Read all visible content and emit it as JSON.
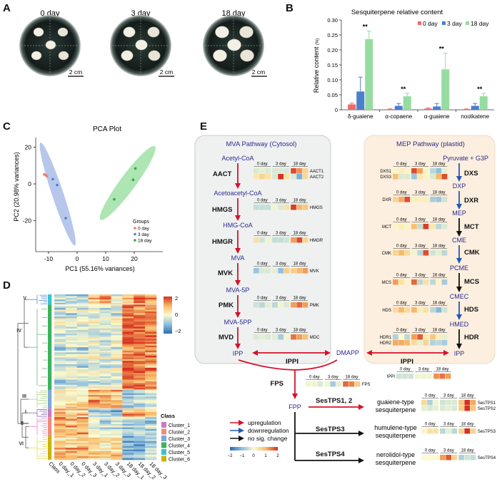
{
  "panels": {
    "a": "A",
    "b": "B",
    "c": "C",
    "d": "D",
    "e": "E"
  },
  "panel_a": {
    "photos": [
      {
        "title": "0 day",
        "scale": "2 cm"
      },
      {
        "title": "3 day",
        "scale": "2 cm"
      },
      {
        "title": "18 day",
        "scale": "2 cm"
      }
    ]
  },
  "colors": {
    "day0": "#ef6a67",
    "day3": "#4a7fcb",
    "day18": "#96dca0",
    "up": "#d7102a",
    "down": "#2159b8",
    "none": "#111111"
  },
  "chart_data": [
    {
      "id": "sesquiterpene",
      "type": "bar",
      "title": "Sesquiterpene relative content",
      "xlabel": "",
      "ylabel": "Relative content",
      "ylabel_unit": "(%)",
      "ylim": [
        0,
        0.3
      ],
      "yticks": [
        "0",
        "0.05",
        "0.10",
        "0.15",
        "0.20",
        "0.25",
        "0.30"
      ],
      "categories": [
        "δ-guaiene",
        "α-copaene",
        "α-guaiene",
        "nootkatene"
      ],
      "legend_position": "top-right",
      "series": [
        {
          "name": "0 day",
          "values": [
            0.018,
            0.002,
            0.004,
            0.002
          ],
          "errors": [
            0.004,
            0.001,
            0.002,
            0.001
          ]
        },
        {
          "name": "3 day",
          "values": [
            0.061,
            0.013,
            0.011,
            0.013
          ],
          "errors": [
            0.048,
            0.008,
            0.01,
            0.008
          ]
        },
        {
          "name": "18 day",
          "values": [
            0.236,
            0.045,
            0.135,
            0.045
          ],
          "errors": [
            0.027,
            0.01,
            0.054,
            0.01
          ]
        }
      ],
      "significance": [
        "**",
        "**",
        "**",
        "**"
      ]
    },
    {
      "id": "pca",
      "type": "scatter",
      "title": "PCA Plot",
      "xlabel": "PC1 (55.16% variances)",
      "ylabel": "PC2 (20.98% variances)",
      "xlim": [
        -15,
        28
      ],
      "ylim": [
        -36,
        25
      ],
      "xticks": [
        "-10",
        "0",
        "10",
        "20"
      ],
      "yticks": [
        "20",
        "0",
        "-20"
      ],
      "xtick_values": [
        -10,
        0,
        10,
        20
      ],
      "ytick_values": [
        20,
        0,
        -20
      ],
      "legend_title": "Groups",
      "legend_position": "bottom-right",
      "series": [
        {
          "name": "0 day",
          "points": [
            [
              -11.5,
              5.2
            ],
            [
              -11,
              4.8
            ],
            [
              -10.6,
              4.2
            ]
          ],
          "ellipse_ends": null
        },
        {
          "name": "3 day",
          "points": [
            [
              -8.5,
              2.6
            ],
            [
              -7,
              -0.6
            ],
            [
              -4,
              -18.6
            ]
          ],
          "ellipse_ends": [
            [
              -12.8,
              22.5
            ],
            [
              -0.8,
              -33.5
            ]
          ]
        },
        {
          "name": "18 day",
          "points": [
            [
              13,
              -8.4
            ],
            [
              19.6,
              2.2
            ],
            [
              20.4,
              8.4
            ]
          ],
          "ellipse_ends": [
            [
              8.2,
              -19.5
            ],
            [
              27.2,
              20.5
            ]
          ]
        }
      ]
    },
    {
      "id": "heatmap",
      "type": "heatmap",
      "columns": [
        "Class",
        "0 day_1",
        "0 day_2",
        "0 day_3",
        "3 day_1",
        "3 day_2",
        "3 day_3",
        "18 day_1",
        "18 day_2",
        "18 day_3"
      ],
      "scale_ticks": [
        "2",
        "0",
        "−2"
      ],
      "legend_title": "Class",
      "clusters": [
        {
          "roman": "V",
          "class": "Cluster_5",
          "rows": 6,
          "profile": [
            -0.8,
            -0.6,
            -0.6,
            0.6,
            1.2,
            -0.2,
            0.8,
            1.2,
            1.0
          ],
          "color": "#37c3cf",
          "tree": "#3b7dd8"
        },
        {
          "roman": "IV",
          "class": "Cluster_4",
          "rows": 50,
          "profile": [
            -0.5,
            -0.4,
            -0.4,
            -0.3,
            -0.4,
            -0.3,
            1.5,
            1.4,
            1.2
          ],
          "color": "#3cb35b",
          "tree": "#5aa96a"
        },
        {
          "roman": "III",
          "class": "Cluster_3",
          "rows": 11,
          "profile": [
            0.3,
            0.3,
            0.3,
            1.0,
            0.9,
            1.0,
            -0.9,
            -0.8,
            -0.5
          ],
          "color": "#7fa8dc",
          "tree": "#9bd06a"
        },
        {
          "roman": "I",
          "class": "Cluster_1",
          "rows": 5,
          "profile": [
            0.8,
            0.6,
            0.6,
            -0.8,
            -1.0,
            -1.1,
            1.0,
            0.9,
            0.4
          ],
          "color": "#c77dbd",
          "tree": "#7a4fb0"
        },
        {
          "roman": "II",
          "class": "Cluster_2",
          "rows": 11,
          "profile": [
            1.3,
            1.1,
            1.2,
            0.0,
            -0.3,
            -0.2,
            -0.6,
            -0.6,
            -0.6
          ],
          "color": "#f08a7e",
          "tree": "#e377b8"
        },
        {
          "roman": "VI",
          "class": "Cluster_6",
          "rows": 14,
          "profile": [
            0.7,
            0.9,
            0.9,
            0.6,
            0.4,
            0.6,
            -1.1,
            -1.0,
            -0.7
          ],
          "color": "#c9b40f",
          "tree": "#d8d82a"
        }
      ],
      "class_legend": [
        "Cluster_1",
        "Cluster_2",
        "Cluster_3",
        "Cluster_4",
        "Cluster_5",
        "Cluster_6"
      ]
    }
  ],
  "pathway": {
    "mva_title": "MVA Pathway (Cytosol)",
    "mep_title": "MEP Pathway (plastid)",
    "mva": {
      "acetyl": "Acetyl-CoA",
      "aact": "AACT",
      "acetoacetyl": "Acetoacetyl-CoA",
      "hmgs": "HMGS",
      "hmgcoa": "HMG-CoA",
      "hmgr": "HMGR",
      "mva": "MVA",
      "mvk": "MVK",
      "mva5p": "MVA-5P",
      "pmk": "PMK",
      "mva5pp": "MVA-5PP",
      "mvd": "MVD",
      "ipp": "IPP"
    },
    "mep": {
      "pyr": "Pyruvate + G3P",
      "dxs": "DXS",
      "dxp": "DXP",
      "dxr": "DXR",
      "mep": "MEP",
      "mct": "MCT",
      "cme": "CME",
      "cmk": "CMK",
      "pcme": "PCME",
      "mcs": "MCS",
      "cmec": "CMEC",
      "hds": "HDS",
      "hmed": "HMED",
      "hdr": "HDR",
      "ipp": "IPP"
    },
    "dmapp": "DMAPP",
    "ippi": "IPPI",
    "fps": "FPS",
    "fpp": "FPP",
    "tps12": "SesTPS1, 2",
    "tps3": "SesTPS3",
    "tps4": "SesTPS4",
    "guaiene": [
      "guaiene-type",
      "sesquiterpene"
    ],
    "humulene": [
      "humulene-type",
      "sesquiterpene"
    ],
    "nerolidol": [
      "nerolidol-type",
      "sesquiterpene"
    ],
    "legend": {
      "up": "upregulation",
      "down": "downregulation",
      "none": "no sig. change",
      "ticks": [
        "−2",
        "−1",
        "0",
        "1",
        "2"
      ]
    },
    "day_headers": [
      "0 day",
      "3 day",
      "18 day"
    ],
    "heatmaps": [
      {
        "id": "AACT",
        "genes": [
          {
            "name": "AACT1",
            "values": [
              -0.3,
              -0.2,
              -0.3,
              -0.3,
              -0.3,
              -0.3,
              1.8,
              1.3,
              0.6
            ]
          },
          {
            "name": "AACT2",
            "values": [
              0.3,
              0.6,
              0.4,
              -0.3,
              2,
              0.4,
              -0.3,
              -1.2,
              0.5
            ]
          }
        ]
      },
      {
        "id": "HMGS",
        "genes": [
          {
            "name": "HMGS",
            "values": [
              -0.5,
              -0.5,
              -0.5,
              -0.1,
              -0.3,
              0.4,
              1.9,
              1.0,
              0.8
            ]
          }
        ]
      },
      {
        "id": "HMGR",
        "genes": [
          {
            "name": "HMGR",
            "values": [
              0.4,
              -0.4,
              -0.1,
              -0.5,
              -0.5,
              -0.4,
              1.2,
              1.8,
              0.6
            ]
          }
        ]
      },
      {
        "id": "MVK",
        "genes": [
          {
            "name": "MVK",
            "values": [
              -0.9,
              -0.3,
              -0.3,
              -0.2,
              -1,
              0.7,
              0.7,
              1,
              1.2
            ]
          }
        ]
      },
      {
        "id": "PMK",
        "genes": [
          {
            "name": "PMK",
            "values": [
              -0.4,
              -0.6,
              -0.2,
              -0.6,
              -0.1,
              -0.3,
              1.2,
              1.6,
              1.2
            ]
          }
        ]
      },
      {
        "id": "MDC",
        "genes": [
          {
            "name": "MDC",
            "values": [
              -0.3,
              -0.2,
              -0.3,
              -0.2,
              -0.8,
              -0.1,
              1.5,
              1.2,
              0.9
            ]
          }
        ]
      },
      {
        "id": "DXS",
        "genes": [
          {
            "name": "DXS1",
            "values": [
              0.1,
              0.2,
              0.1,
              1.8,
              1.2,
              0.1,
              -0.6,
              -1,
              -0.2
            ]
          },
          {
            "name": "DXS3",
            "values": [
              0.9,
              -0.3,
              -0.3,
              -0.9,
              0.3,
              0.1,
              -0.3,
              1,
              1.8
            ]
          }
        ]
      },
      {
        "id": "DXR",
        "genes": [
          {
            "name": "DXR",
            "values": [
              0.6,
              1.1,
              1.8,
              0.2,
              0.2,
              0.2,
              -0.8,
              -0.9,
              -0.4
            ]
          }
        ]
      },
      {
        "id": "MCT",
        "genes": [
          {
            "name": "MCT",
            "values": [
              0.1,
              0.2,
              0.1,
              0.9,
              -0.5,
              1.9,
              0.3,
              -0.6,
              -0.3
            ]
          }
        ]
      },
      {
        "id": "CMK",
        "genes": [
          {
            "name": "CMK",
            "values": [
              0.6,
              1.0,
              0.5,
              -0.1,
              -0.6,
              1.8,
              -0.4,
              -0.2,
              -0.6
            ]
          }
        ]
      },
      {
        "id": "MCS",
        "genes": [
          {
            "name": "MCS",
            "values": [
              1.2,
              0.4,
              0.1,
              1.6,
              -0.6,
              0.4,
              -0.6,
              0.1,
              -0.8
            ]
          }
        ]
      },
      {
        "id": "HDS",
        "genes": [
          {
            "name": "HDS",
            "values": [
              0.5,
              1.0,
              0.5,
              1.0,
              0.2,
              0.4,
              -0.6,
              -1.1,
              -0.4
            ]
          }
        ]
      },
      {
        "id": "HDR",
        "genes": [
          {
            "name": "HDR1",
            "values": [
              -0.7,
              0,
              -0.6,
              1.2,
              1.7,
              0.3,
              0.8,
              0.2,
              -0.2
            ]
          },
          {
            "name": "HDR2",
            "values": [
              1.1,
              1.1,
              1.0,
              0.5,
              -0.2,
              0.6,
              -0.7,
              -0.6,
              -0.8
            ]
          }
        ]
      },
      {
        "id": "IPPI",
        "genes": [
          {
            "name": "IPPI",
            "values": [
              -0.4,
              -0.4,
              -0.4,
              -0.1,
              -0.1,
              -0.1,
              1.3,
              1.5,
              1.2
            ]
          }
        ]
      },
      {
        "id": "FPS",
        "genes": [
          {
            "name": "FPS",
            "values": [
              -0.1,
              -0.1,
              -0.3,
              -0.1,
              -0.8,
              -0.2,
              1.6,
              1.4,
              0.7
            ]
          }
        ]
      },
      {
        "id": "TPS12",
        "genes": [
          {
            "name": "SesTPS1",
            "values": [
              0.5,
              -0.7,
              -0.1,
              -0.4,
              -0.3,
              -0.3,
              0.8,
              2,
              1.1
            ]
          },
          {
            "name": "SesTPS2",
            "values": [
              -0.2,
              -0.3,
              -0.2,
              -0.3,
              -0.2,
              -0.3,
              0.7,
              2,
              0.8
            ]
          }
        ]
      },
      {
        "id": "TPS3",
        "genes": [
          {
            "name": "SesTPS3",
            "values": [
              0.1,
              0.4,
              0.4,
              -0.6,
              -0.2,
              -0.6,
              0.6,
              2,
              0.6
            ]
          }
        ]
      },
      {
        "id": "TPS4",
        "genes": [
          {
            "name": "SesTPS4",
            "values": [
              0,
              0,
              0,
              1.2,
              1.7,
              0.6,
              -0.7,
              -0.4,
              -0.5
            ]
          }
        ]
      }
    ]
  }
}
